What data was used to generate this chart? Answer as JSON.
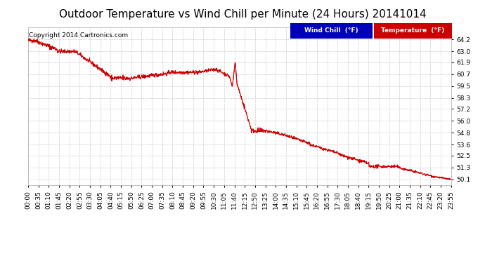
{
  "title": "Outdoor Temperature vs Wind Chill per Minute (24 Hours) 20141014",
  "copyright": "Copyright 2014 Cartronics.com",
  "background_color": "#ffffff",
  "plot_bg_color": "#ffffff",
  "grid_color": "#cccccc",
  "wind_chill_color": "#cc0000",
  "temp_color": "#cc0000",
  "legend_wind_bg": "#0000bb",
  "legend_temp_bg": "#cc0000",
  "ylim_min": 49.5,
  "ylim_max": 65.4,
  "yticks": [
    50.1,
    51.3,
    52.5,
    53.6,
    54.8,
    56.0,
    57.2,
    58.3,
    59.5,
    60.7,
    61.9,
    63.0,
    64.2
  ],
  "xtick_labels": [
    "00:00",
    "00:35",
    "01:10",
    "01:45",
    "02:20",
    "02:55",
    "03:30",
    "04:05",
    "04:40",
    "05:15",
    "05:50",
    "06:25",
    "07:00",
    "07:35",
    "08:10",
    "08:45",
    "09:20",
    "09:55",
    "10:30",
    "11:05",
    "11:40",
    "12:15",
    "12:50",
    "13:25",
    "14:00",
    "14:35",
    "15:10",
    "15:45",
    "16:20",
    "16:55",
    "17:30",
    "18:05",
    "18:40",
    "19:15",
    "19:50",
    "20:25",
    "21:00",
    "21:35",
    "22:10",
    "22:45",
    "23:20",
    "23:55"
  ],
  "n_points": 1440,
  "title_fontsize": 11,
  "copyright_fontsize": 6.5,
  "tick_fontsize": 6.5
}
